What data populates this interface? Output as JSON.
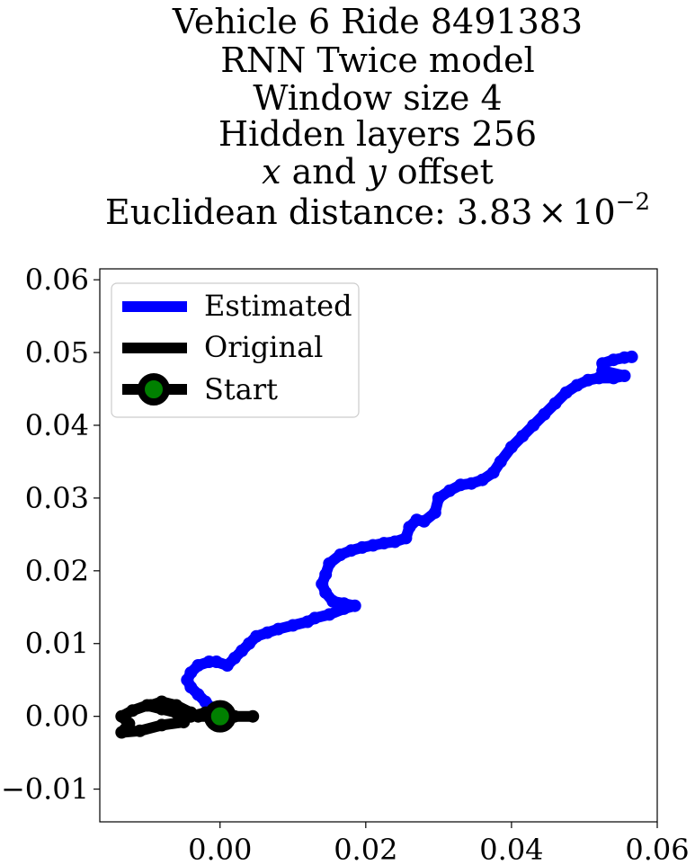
{
  "chart_data": {
    "type": "line",
    "title_lines": [
      "Vehicle 6 Ride 8491383",
      "RNN Twice model",
      "Window size 4",
      "Hidden layers 256"
    ],
    "title_offset_line": {
      "x": "x",
      "and": " and ",
      "y": "y",
      "rest": " offset"
    },
    "title_distance_line": {
      "prefix": "Euclidean distance: 3.83",
      "times": "×",
      "base": "10",
      "exponent": "−2"
    },
    "xlabel": "",
    "ylabel": "",
    "xlim": [
      -0.0165,
      0.06
    ],
    "ylim": [
      -0.0145,
      0.0615
    ],
    "x_ticks": [
      0.0,
      0.02,
      0.04,
      0.06
    ],
    "x_tick_labels": [
      "0.00",
      "0.02",
      "0.04",
      "0.06"
    ],
    "y_ticks": [
      -0.01,
      0.0,
      0.01,
      0.02,
      0.03,
      0.04,
      0.05,
      0.06
    ],
    "y_tick_labels": [
      "−0.01",
      "0.00",
      "0.01",
      "0.02",
      "0.03",
      "0.04",
      "0.05",
      "0.06"
    ],
    "grid": false,
    "legend_position": "top-left",
    "legend": [
      {
        "label": "Estimated",
        "color": "#0000ff",
        "marker": "none"
      },
      {
        "label": "Original",
        "color": "#000000",
        "marker": "none"
      },
      {
        "label": "Start",
        "color": "#000000",
        "marker": "circle",
        "marker_face": "#008000"
      }
    ],
    "series": [
      {
        "name": "Estimated",
        "color": "#0000ff",
        "marker": "circle",
        "points": [
          [
            0.0,
            0.0
          ],
          [
            -0.001,
            0.001
          ],
          [
            -0.002,
            0.002
          ],
          [
            -0.003,
            0.003
          ],
          [
            -0.004,
            0.004
          ],
          [
            -0.0045,
            0.005
          ],
          [
            -0.004,
            0.006
          ],
          [
            -0.003,
            0.007
          ],
          [
            -0.0015,
            0.0075
          ],
          [
            -0.0005,
            0.0075
          ],
          [
            0.001,
            0.007
          ],
          [
            0.002,
            0.008
          ],
          [
            0.003,
            0.009
          ],
          [
            0.004,
            0.01
          ],
          [
            0.005,
            0.011
          ],
          [
            0.0065,
            0.0115
          ],
          [
            0.008,
            0.012
          ],
          [
            0.01,
            0.0125
          ],
          [
            0.012,
            0.013
          ],
          [
            0.013,
            0.0135
          ],
          [
            0.015,
            0.014
          ],
          [
            0.017,
            0.0148
          ],
          [
            0.0185,
            0.0152
          ],
          [
            0.017,
            0.0155
          ],
          [
            0.0155,
            0.0158
          ],
          [
            0.0145,
            0.017
          ],
          [
            0.014,
            0.0182
          ],
          [
            0.0145,
            0.0195
          ],
          [
            0.015,
            0.021
          ],
          [
            0.0165,
            0.0222
          ],
          [
            0.018,
            0.0228
          ],
          [
            0.0195,
            0.0232
          ],
          [
            0.021,
            0.0235
          ],
          [
            0.0225,
            0.0238
          ],
          [
            0.024,
            0.024
          ],
          [
            0.0255,
            0.0245
          ],
          [
            0.026,
            0.026
          ],
          [
            0.027,
            0.027
          ],
          [
            0.028,
            0.0268
          ],
          [
            0.0295,
            0.028
          ],
          [
            0.03,
            0.03
          ],
          [
            0.0315,
            0.031
          ],
          [
            0.033,
            0.0318
          ],
          [
            0.0345,
            0.032
          ],
          [
            0.036,
            0.0325
          ],
          [
            0.0375,
            0.0335
          ],
          [
            0.0385,
            0.035
          ],
          [
            0.04,
            0.037
          ],
          [
            0.0415,
            0.0385
          ],
          [
            0.043,
            0.04
          ],
          [
            0.0445,
            0.0415
          ],
          [
            0.046,
            0.043
          ],
          [
            0.0475,
            0.0445
          ],
          [
            0.049,
            0.0455
          ],
          [
            0.0505,
            0.0462
          ],
          [
            0.052,
            0.0465
          ],
          [
            0.054,
            0.0465
          ],
          [
            0.0555,
            0.0468
          ],
          [
            0.0525,
            0.0475
          ],
          [
            0.0525,
            0.0485
          ],
          [
            0.054,
            0.049
          ],
          [
            0.0555,
            0.0493
          ],
          [
            0.0565,
            0.0494
          ]
        ]
      },
      {
        "name": "Original",
        "color": "#000000",
        "marker": "circle",
        "points": [
          [
            0.0,
            0.0
          ],
          [
            -0.002,
            0.0005
          ],
          [
            -0.004,
            0.0
          ],
          [
            -0.006,
            0.0005
          ],
          [
            -0.008,
            0.001
          ],
          [
            -0.01,
            0.0015
          ],
          [
            -0.012,
            0.0008
          ],
          [
            -0.0135,
            0.0
          ],
          [
            -0.0125,
            -0.001
          ],
          [
            -0.0135,
            -0.0022
          ],
          [
            -0.011,
            -0.002
          ],
          [
            -0.008,
            -0.0012
          ],
          [
            -0.005,
            -0.0008
          ],
          [
            -0.004,
            0.0005
          ],
          [
            -0.006,
            0.0015
          ],
          [
            -0.008,
            0.002
          ],
          [
            -0.0095,
            0.0015
          ],
          [
            -0.007,
            0.001
          ],
          [
            -0.005,
            0.0005
          ],
          [
            -0.003,
            0.0
          ],
          [
            0.0,
            0.0
          ],
          [
            0.002,
            0.0
          ],
          [
            0.0045,
            0.0
          ]
        ]
      }
    ],
    "start_point": {
      "x": 0.0,
      "y": 0.0
    }
  }
}
